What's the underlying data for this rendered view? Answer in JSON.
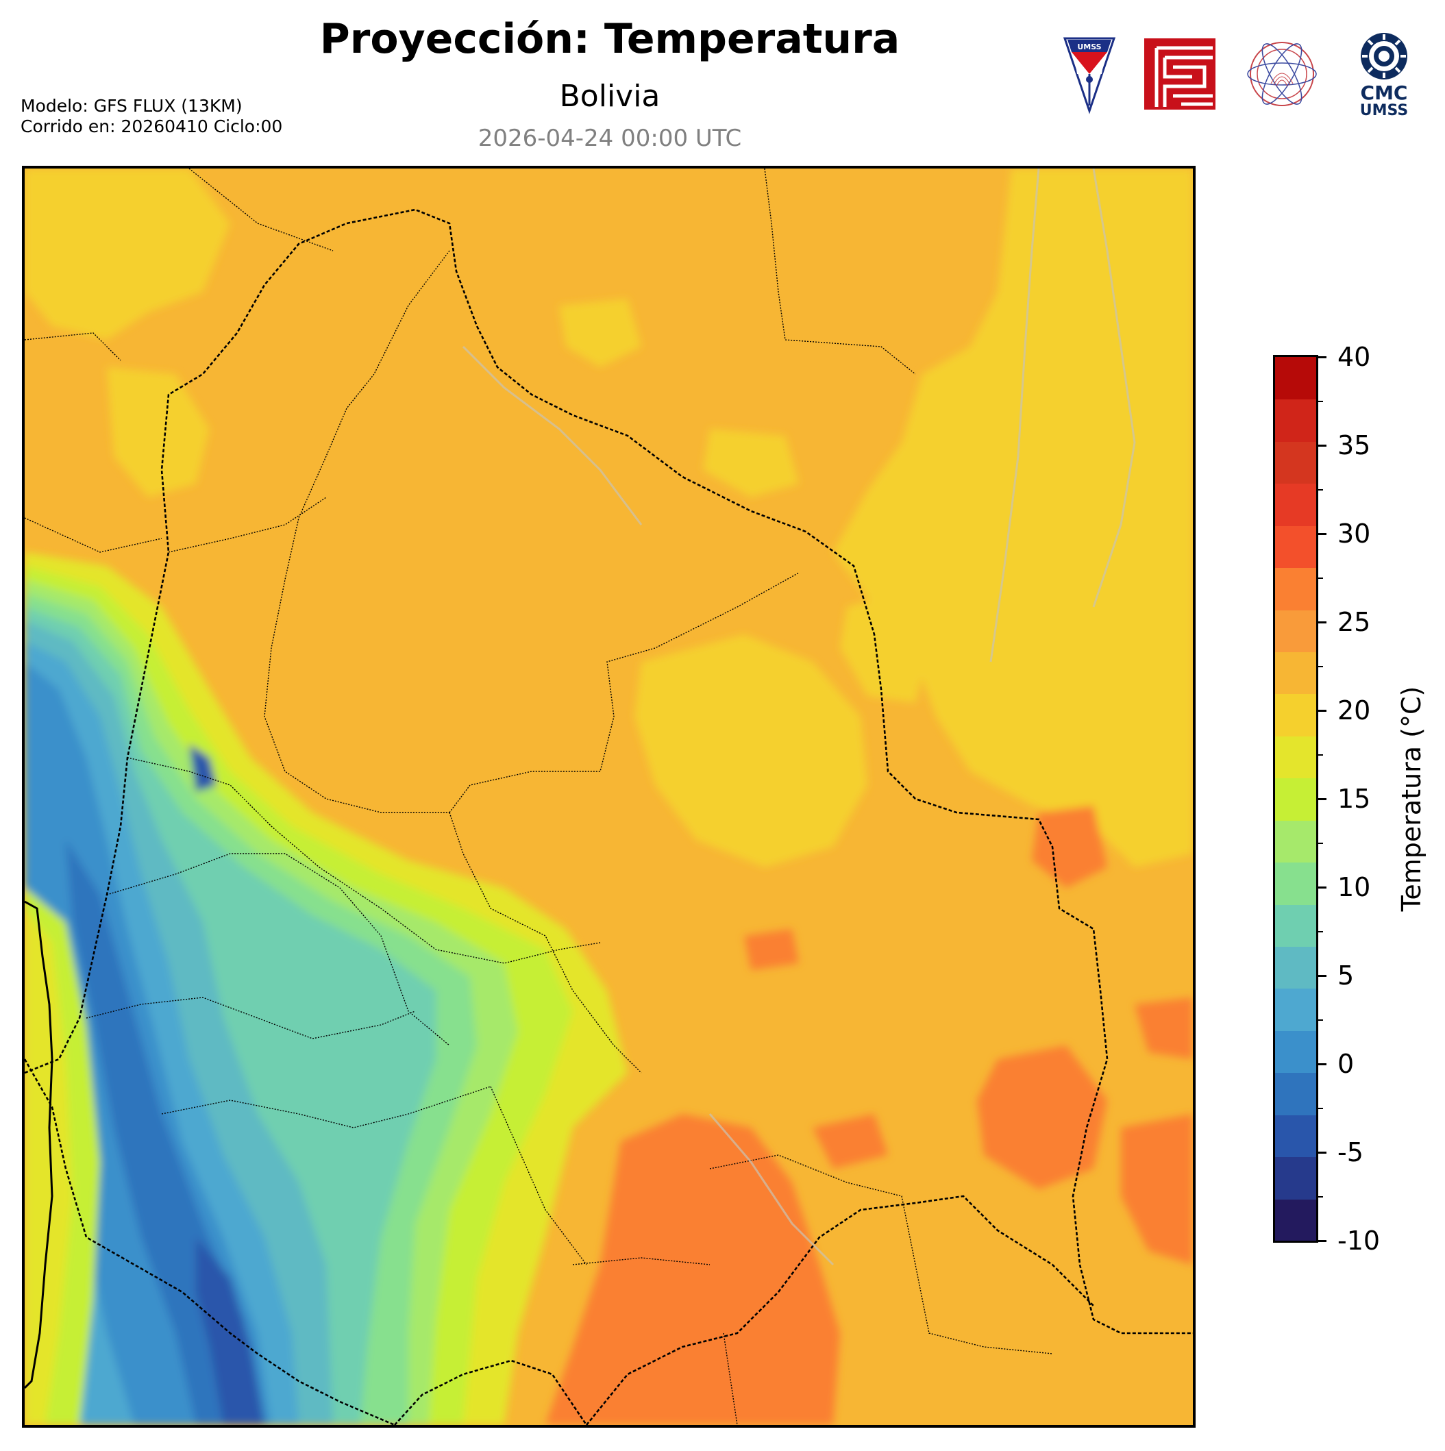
{
  "header": {
    "title": "Proyección: Temperatura",
    "subtitle": "Bolivia",
    "datetime": "2026-04-24 00:00 UTC"
  },
  "meta": {
    "model": "Modelo: GFS FLUX (13KM)",
    "run": "Corrido en: 20260410 Ciclo:00"
  },
  "logos": {
    "umss_label": "UMSS",
    "cmc_line1": "CMC",
    "cmc_line2": "UMSS"
  },
  "colorbar": {
    "label": "Temperatura (°C)",
    "min": -10,
    "max": 40,
    "step": 2.5,
    "tick_labels": [
      "40",
      "35",
      "30",
      "25",
      "20",
      "15",
      "10",
      "5",
      "0",
      "-5",
      "-10"
    ],
    "colors": [
      "#231a5e",
      "#263a8c",
      "#2956ab",
      "#2f74bd",
      "#3b90cb",
      "#4ea8d0",
      "#5fbac3",
      "#6fcfb0",
      "#87e08e",
      "#a6e96b",
      "#c6ef35",
      "#e4e52c",
      "#f5d02d",
      "#f7b634",
      "#f99b3a",
      "#fa8032",
      "#f3502b",
      "#e63a25",
      "#d4361f",
      "#d02519",
      "#b60a08"
    ]
  }
}
